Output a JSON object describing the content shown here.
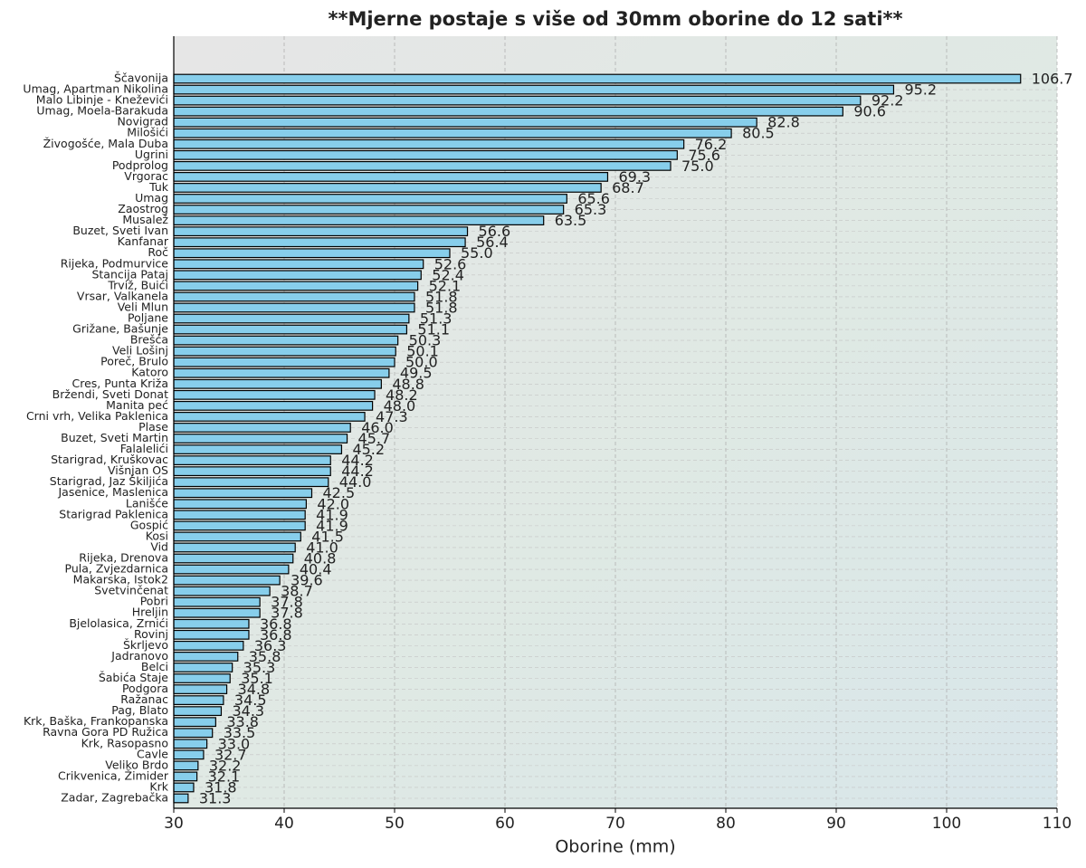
{
  "chart_data": {
    "type": "barh",
    "title": "**Mjerne postaje s više od 30mm oborine do 12 sati**",
    "x_label": "Oborine (mm)",
    "color": "#87ceeb",
    "grid": true,
    "xlim": [
      30,
      110
    ],
    "xticks": [
      30,
      40,
      50,
      60,
      70,
      80,
      90,
      100,
      110
    ],
    "categories": [
      "Ščavonija",
      "Umag, Apartman Nikolina",
      "Malo Libinje - Kneževići",
      "Umag, Moela-Barakuda",
      "Novigrad",
      "Milošići",
      "Živogošće, Mala Duba",
      "Ugrini",
      "Podprolog",
      "Vrgorac",
      "Tuk",
      "Umag",
      "Zaostrog",
      "Musalež",
      "Buzet, Sveti Ivan",
      "Kanfanar",
      "Roč",
      "Rijeka, Podmurvice",
      "Stancija Pataj",
      "Trviž, Buići",
      "Vrsar, Valkanela",
      "Veli Mlun",
      "Poljane",
      "Grižane, Bašunje",
      "Brešća",
      "Veli Lošinj",
      "Poreč, Brulo",
      "Katoro",
      "Cres, Punta Križa",
      "Bržendi, Sveti Donat",
      "Manita peć",
      "Crni vrh, Velika Paklenica",
      "Plase",
      "Buzet, Sveti Martin",
      "Falalelići",
      "Starigrad, Kruškovac",
      "Višnjan OS",
      "Starigrad, Jaz Škiljića",
      "Jasenice, Maslenica",
      "Lanišće",
      "Starigrad Paklenica",
      "Gospić",
      "Kosi",
      "Vid",
      "Rijeka, Drenova",
      "Pula, Zvjezdarnica",
      "Makarska, Istok2",
      "Svetvinčenat",
      "Pobri",
      "Hreljin",
      "Bjelolasica, Zrnići",
      "Rovinj",
      "Škrljevo",
      "Jadranovo",
      "Belci",
      "Šabića Staje",
      "Podgora",
      "Ražanac",
      "Pag, Blato",
      "Krk, Baška, Frankopanska",
      "Ravna Gora PD Ružica",
      "Krk, Rasopasno",
      "Cavle",
      "Veliko Brdo",
      "Crikvenica, Žimider",
      "Krk",
      "Zadar, Zagrebačka"
    ],
    "values": [
      106.7,
      95.2,
      92.2,
      90.6,
      82.8,
      80.5,
      76.2,
      75.6,
      75.0,
      69.3,
      68.7,
      65.6,
      65.3,
      63.5,
      56.6,
      56.4,
      55.0,
      52.6,
      52.4,
      52.1,
      51.8,
      51.8,
      51.3,
      51.1,
      50.3,
      50.1,
      50.0,
      49.5,
      48.8,
      48.2,
      48.0,
      47.3,
      46.0,
      45.7,
      45.2,
      44.2,
      44.2,
      44.0,
      42.5,
      42.0,
      41.9,
      41.9,
      41.5,
      41.0,
      40.8,
      40.4,
      39.6,
      38.7,
      37.8,
      37.8,
      36.8,
      36.8,
      36.3,
      35.8,
      35.3,
      35.1,
      34.8,
      34.5,
      34.3,
      33.8,
      33.5,
      33.0,
      32.7,
      32.2,
      32.1,
      31.8,
      31.3
    ],
    "value_labels": [
      "106.7",
      "95.2",
      "92.2",
      "90.6",
      "82.8",
      "80.5",
      "76.2",
      "75.6",
      "75.0",
      "69.3",
      "68.7",
      "65.6",
      "65.3",
      "63.5",
      "56.6",
      "56.4",
      "55.0",
      "52.6",
      "52.4",
      "52.1",
      "51.8",
      "51.8",
      "51.3",
      "51.1",
      "50.3",
      "50.1",
      "50.0",
      "49.5",
      "48.8",
      "48.2",
      "48.0",
      "47.3",
      "46.0",
      "45.7",
      "45.2",
      "44.2",
      "44.2",
      "44.0",
      "42.5",
      "42.0",
      "41.9",
      "41.9",
      "41.5",
      "41.0",
      "40.8",
      "40.4",
      "39.6",
      "38.7",
      "37.8",
      "37.8",
      "36.8",
      "36.8",
      "36.3",
      "35.8",
      "35.3",
      "35.1",
      "34.8",
      "34.5",
      "34.3",
      "33.8",
      "33.5",
      "33.0",
      "32.7",
      "32.2",
      "32.1",
      "31.8",
      "31.3"
    ]
  }
}
